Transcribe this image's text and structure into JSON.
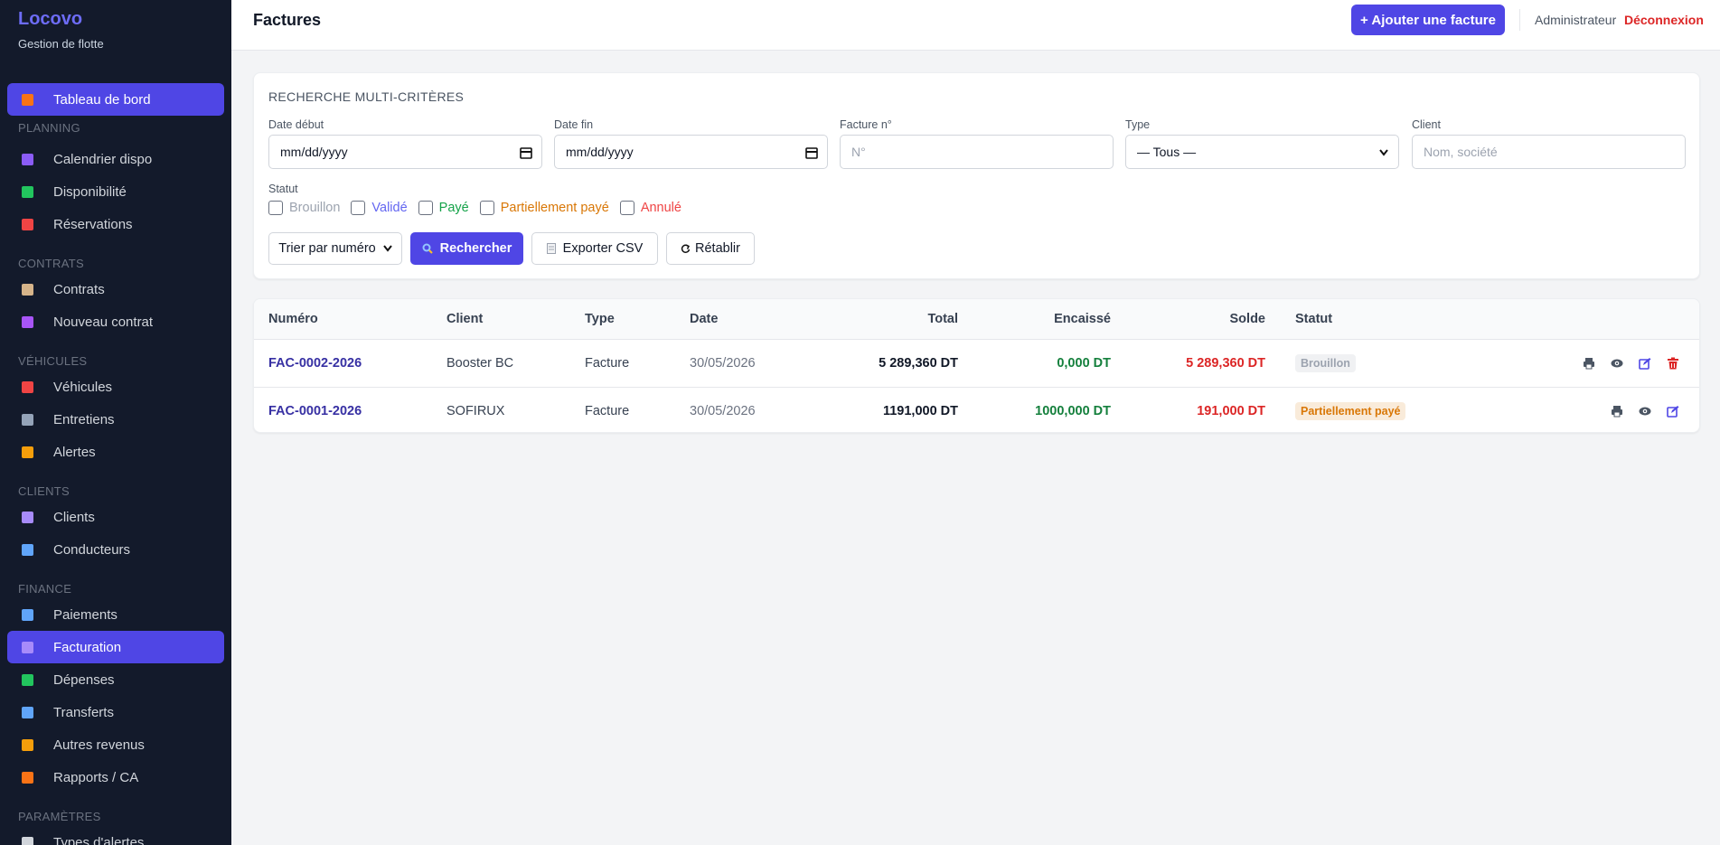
{
  "sidebar": {
    "brand": "Locovo",
    "tagline": "Gestion de flotte",
    "nav": [
      {
        "label": "Tableau de bord",
        "active": true
      },
      {
        "section": "PLANNING"
      },
      {
        "label": "Calendrier dispo"
      },
      {
        "label": "Disponibilité"
      },
      {
        "label": "Réservations"
      },
      {
        "section": "CONTRATS"
      },
      {
        "label": "Contrats"
      },
      {
        "label": "Nouveau contrat"
      },
      {
        "section": "VÉHICULES"
      },
      {
        "label": "Véhicules"
      },
      {
        "label": "Entretiens"
      },
      {
        "label": "Alertes"
      },
      {
        "section": "CLIENTS"
      },
      {
        "label": "Clients"
      },
      {
        "label": "Conducteurs"
      },
      {
        "section": "FINANCE"
      },
      {
        "label": "Paiements"
      },
      {
        "label": "Facturation",
        "active": true
      },
      {
        "label": "Dépenses"
      },
      {
        "label": "Transferts"
      },
      {
        "label": "Autres revenus"
      },
      {
        "label": "Rapports / CA"
      },
      {
        "section": "PARAMÈTRES"
      },
      {
        "label": "Types d'alertes"
      }
    ]
  },
  "header": {
    "title": "Factures",
    "add_button": "+ Ajouter une facture",
    "user": "Administrateur",
    "logout": "Déconnexion"
  },
  "search": {
    "title": "RECHERCHE MULTI-CRITÈRES",
    "fields": [
      {
        "label": "Date début",
        "value": "mm/dd/yyyy"
      },
      {
        "label": "Date fin",
        "value": "mm/dd/yyyy"
      },
      {
        "label": "Facture n°",
        "placeholder": "N°"
      },
      {
        "label": "Type",
        "value": "— Tous —"
      },
      {
        "label": "Client",
        "placeholder": "Nom, société"
      }
    ],
    "status_label": "Statut",
    "statuses": [
      {
        "name": "Brouillon",
        "color": "#9ca3af"
      },
      {
        "name": "Validé",
        "color": "#6366f1"
      },
      {
        "name": "Payé",
        "color": "#16a34a"
      },
      {
        "name": "Partiellement payé",
        "color": "#d97706"
      },
      {
        "name": "Annulé",
        "color": "#ef4444"
      }
    ],
    "sort": "Trier par numéro",
    "search_button": "Rechercher",
    "export_button": "Exporter CSV",
    "reset_button": "Rétablir"
  },
  "table": {
    "columns": [
      "Numéro",
      "Client",
      "Type",
      "Date",
      "Total",
      "Encaissé",
      "Solde",
      "Statut"
    ],
    "rows": [
      [
        "FAC-0002-2026",
        "Booster BC",
        "Facture",
        "30/05/2026",
        "5 289,360 DT",
        "0,000 DT",
        "5 289,360 DT",
        "Brouillon"
      ],
      [
        "FAC-0001-2026",
        "SOFIRUX",
        "Facture",
        "30/05/2026",
        "1191,000 DT",
        "1000,000 DT",
        "191,000 DT",
        "Partiellement payé"
      ]
    ]
  }
}
